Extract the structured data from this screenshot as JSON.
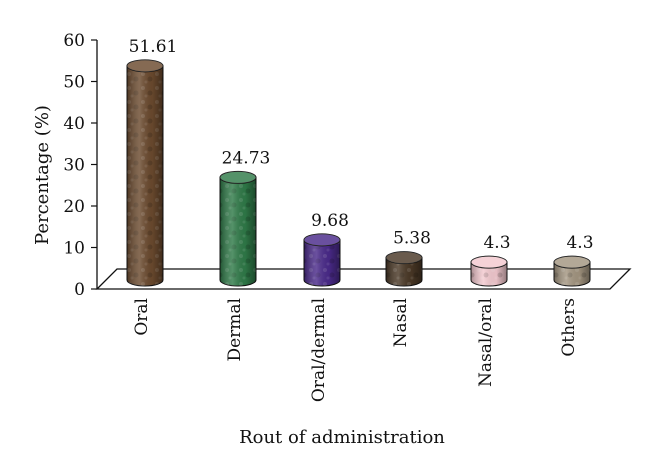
{
  "chart_data": {
    "type": "bar",
    "title": "",
    "xlabel": "Rout of administration",
    "ylabel": "Percentage (%)",
    "ylim": [
      0,
      60
    ],
    "yticks": [
      0,
      10,
      20,
      30,
      40,
      50,
      60
    ],
    "categories": [
      "Oral",
      "Dermal",
      "Oral/dermal",
      "Nasal",
      "Nasal/oral",
      "Others"
    ],
    "values": [
      51.61,
      24.73,
      9.68,
      5.38,
      4.3,
      4.3
    ],
    "value_labels": [
      "51.61",
      "24.73",
      "9.68",
      "5.38",
      "4.3",
      "4.3"
    ],
    "colors": [
      "#6b4a2e",
      "#2f7a48",
      "#4a2a8a",
      "#4a3826",
      "#f3c9cf",
      "#a39580"
    ],
    "grid": false,
    "legend": "none"
  }
}
